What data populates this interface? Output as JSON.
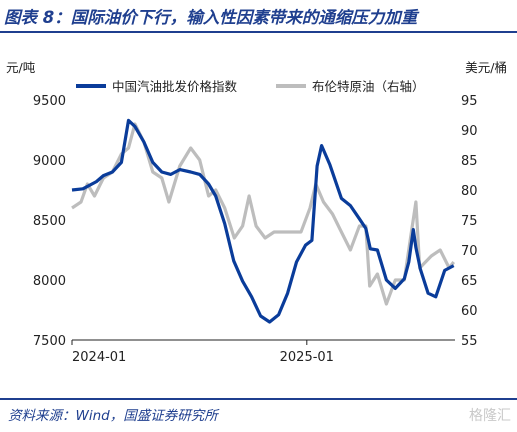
{
  "figure": {
    "title": "图表 8：国际油价下行，输入性因素带来的通缩压力加重",
    "source": "资料来源：Wind，国盛证券研究所",
    "watermark": "格隆汇"
  },
  "chart_data": {
    "type": "line",
    "left_unit": "元/吨",
    "right_unit": "美元/桶",
    "x_ticks": [
      "2024-01",
      "2025-01"
    ],
    "xlim": [
      "2024-01-01",
      "2025-08-20"
    ],
    "ylim_left": [
      7500,
      9500
    ],
    "ylim_right": [
      55,
      95
    ],
    "yticks_left": [
      7500,
      8000,
      8500,
      9000,
      9500
    ],
    "yticks_right": [
      55,
      60,
      65,
      70,
      75,
      80,
      85,
      90,
      95
    ],
    "grid": false,
    "legend_position": "top",
    "colors": {
      "china": "#0a3c9a",
      "brent": "#bdbdbd"
    },
    "series": [
      {
        "name": "中国汽油批发价格指数",
        "axis": "left",
        "x": [
          "2024-01-01",
          "2024-01-18",
          "2024-02-08",
          "2024-02-19",
          "2024-03-04",
          "2024-03-18",
          "2024-03-29",
          "2024-04-08",
          "2024-04-22",
          "2024-05-06",
          "2024-05-20",
          "2024-06-03",
          "2024-06-17",
          "2024-07-04",
          "2024-07-18",
          "2024-08-01",
          "2024-08-12",
          "2024-08-26",
          "2024-09-09",
          "2024-09-23",
          "2024-10-07",
          "2024-10-21",
          "2024-11-04",
          "2024-11-18",
          "2024-12-02",
          "2024-12-16",
          "2024-12-30",
          "2025-01-09",
          "2025-01-17",
          "2025-01-24",
          "2025-02-06",
          "2025-02-24",
          "2025-03-10",
          "2025-03-24",
          "2025-04-03",
          "2025-04-10",
          "2025-04-21",
          "2025-05-05",
          "2025-05-19",
          "2025-06-02",
          "2025-06-09",
          "2025-06-16",
          "2025-06-20",
          "2025-06-27",
          "2025-07-09",
          "2025-07-21",
          "2025-08-04",
          "2025-08-18"
        ],
        "y": [
          8750,
          8760,
          8820,
          8870,
          8900,
          8980,
          9330,
          9280,
          9150,
          8980,
          8900,
          8880,
          8920,
          8900,
          8880,
          8800,
          8700,
          8470,
          8160,
          7990,
          7860,
          7700,
          7650,
          7710,
          7890,
          8150,
          8290,
          8330,
          8950,
          9120,
          8960,
          8680,
          8620,
          8510,
          8430,
          8260,
          8250,
          8000,
          7930,
          8010,
          8150,
          8420,
          8270,
          8090,
          7890,
          7860,
          8080,
          8120
        ]
      },
      {
        "name": "布伦特原油（右轴）",
        "axis": "right",
        "x": [
          "2024-01-01",
          "2024-01-15",
          "2024-01-25",
          "2024-02-05",
          "2024-02-19",
          "2024-03-04",
          "2024-03-18",
          "2024-03-29",
          "2024-04-08",
          "2024-04-22",
          "2024-05-06",
          "2024-05-20",
          "2024-05-31",
          "2024-06-17",
          "2024-07-04",
          "2024-07-18",
          "2024-08-01",
          "2024-08-12",
          "2024-08-26",
          "2024-09-10",
          "2024-09-23",
          "2024-10-03",
          "2024-10-14",
          "2024-10-28",
          "2024-11-11",
          "2024-11-25",
          "2024-12-09",
          "2024-12-23",
          "2025-01-06",
          "2025-01-15",
          "2025-01-27",
          "2025-02-10",
          "2025-02-24",
          "2025-03-10",
          "2025-03-24",
          "2025-04-03",
          "2025-04-09",
          "2025-04-21",
          "2025-05-05",
          "2025-05-19",
          "2025-06-02",
          "2025-06-13",
          "2025-06-20",
          "2025-06-26",
          "2025-07-14",
          "2025-07-28",
          "2025-08-11",
          "2025-08-18"
        ],
        "y": [
          77,
          78,
          81,
          79,
          82,
          83,
          86,
          87,
          91,
          88,
          83,
          82,
          78,
          84,
          87,
          85,
          79,
          80,
          77,
          72,
          74,
          79,
          74,
          72,
          73,
          73,
          73,
          73,
          77,
          81,
          78,
          76,
          73,
          70,
          74,
          74,
          64,
          66,
          61,
          65,
          65,
          73,
          78,
          67,
          69,
          70,
          67,
          68
        ]
      }
    ]
  }
}
